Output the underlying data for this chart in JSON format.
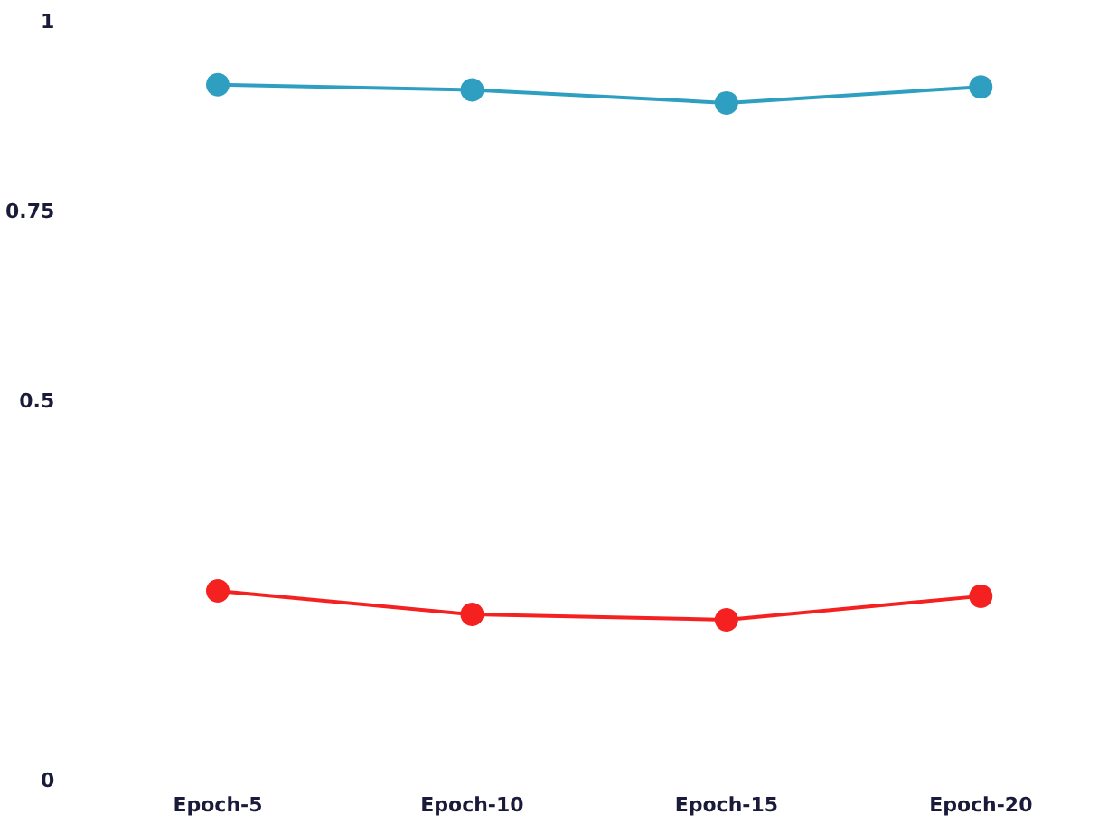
{
  "chart_data": {
    "type": "line",
    "categories": [
      "Epoch-5",
      "Epoch-10",
      "Epoch-15",
      "Epoch-20"
    ],
    "series": [
      {
        "color": "#2e9fc0",
        "values": [
          0.917,
          0.91,
          0.893,
          0.914
        ]
      },
      {
        "color": "#f52020",
        "values": [
          0.25,
          0.219,
          0.212,
          0.243
        ]
      }
    ],
    "ylim": [
      0,
      1
    ],
    "yticks": [
      0,
      0.5,
      0.75,
      1
    ],
    "grid": false,
    "marker": "circle",
    "line_style": "solid"
  }
}
